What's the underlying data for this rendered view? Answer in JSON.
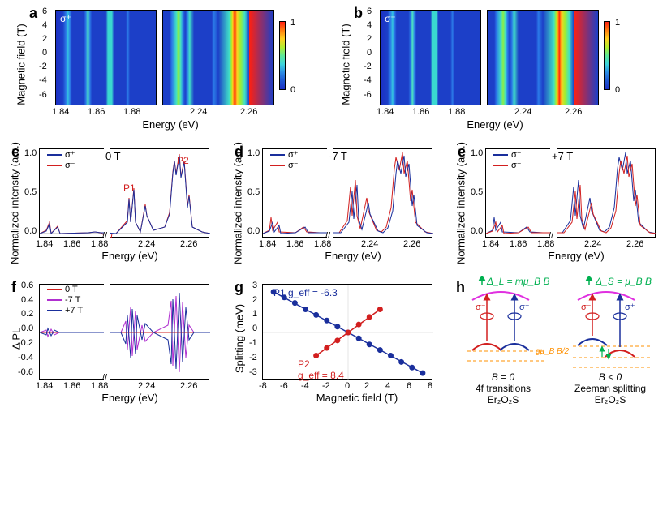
{
  "colors": {
    "sigma_plus": "#1a2f9c",
    "sigma_minus": "#d21f1f",
    "violet": "#b030d0",
    "green": "#00b050",
    "magenta": "#e030e0",
    "orange": "#ff9000",
    "axis": "#000000",
    "bg": "#ffffff"
  },
  "typography": {
    "label_fontsize": 13,
    "tick_fontsize": 11,
    "panel_label_fontsize": 18
  },
  "panels": {
    "a": {
      "label": "a",
      "sigma": "σ⁺",
      "ylabel": "Magnetic field (T)",
      "xlabel": "Energy (eV)",
      "yticks": [
        -6,
        -4,
        -2,
        0,
        2,
        4,
        6
      ],
      "xticks_left": [
        "1.84",
        "1.86",
        "1.88"
      ],
      "xticks_right": [
        "2.24",
        "2.26"
      ],
      "colorbar": {
        "min": "0",
        "max": "1"
      }
    },
    "b": {
      "label": "b",
      "sigma": "σ⁻",
      "ylabel": "Magnetic field (T)",
      "xlabel": "Energy (eV)",
      "yticks": [
        -6,
        -4,
        -2,
        0,
        2,
        4,
        6
      ],
      "xticks_left": [
        "1.84",
        "1.86",
        "1.88"
      ],
      "xticks_right": [
        "2.24",
        "2.26"
      ],
      "colorbar": {
        "min": "0",
        "max": "1"
      }
    },
    "c": {
      "label": "c",
      "field": "0 T",
      "ylabel": "Normalized intensity (a.u.)",
      "xlabel": "Energy (eV)",
      "yticks": [
        "0.0",
        "0.5",
        "1.0"
      ],
      "xticks_left": [
        "1.84",
        "1.86",
        "1.88"
      ],
      "xticks_right": [
        "2.24",
        "2.26"
      ],
      "legend": [
        "σ⁺",
        "σ⁻"
      ],
      "peaks": {
        "P1": "P1",
        "P2": "P2"
      }
    },
    "d": {
      "label": "d",
      "field": "-7 T",
      "ylabel": "Normalized intensity (a.u.)",
      "xlabel": "Energy (eV)",
      "yticks": [
        "0.0",
        "0.5",
        "1.0"
      ],
      "xticks_left": [
        "1.84",
        "1.86",
        "1.88"
      ],
      "xticks_right": [
        "2.24",
        "2.26"
      ],
      "legend": [
        "σ⁺",
        "σ⁻"
      ]
    },
    "e": {
      "label": "e",
      "field": "+7 T",
      "ylabel": "Normalized intensity (a.u.)",
      "xlabel": "Energy (eV)",
      "yticks": [
        "0.0",
        "0.5",
        "1.0"
      ],
      "xticks_left": [
        "1.84",
        "1.86",
        "1.88"
      ],
      "xticks_right": [
        "2.24",
        "2.26"
      ],
      "legend": [
        "σ⁺",
        "σ⁻"
      ]
    },
    "f": {
      "label": "f",
      "ylabel": "Δ PL",
      "xlabel": "Energy (eV)",
      "yticks": [
        "-0.6",
        "-0.4",
        "-0.2",
        "0.0",
        "0.2",
        "0.4",
        "0.6"
      ],
      "xticks_left": [
        "1.84",
        "1.86",
        "1.88"
      ],
      "xticks_right": [
        "2.24",
        "2.26"
      ],
      "legend": [
        "0 T",
        "-7 T",
        "+7 T"
      ]
    },
    "g": {
      "label": "g",
      "ylabel": "Splitting (meV)",
      "xlabel": "Magnetic field (T)",
      "yticks": [
        "-3",
        "-2",
        "-1",
        "0",
        "1",
        "2",
        "3"
      ],
      "xticks": [
        "-8",
        "-6",
        "-4",
        "-2",
        "0",
        "2",
        "4",
        "6",
        "8"
      ],
      "series": [
        {
          "name": "P1",
          "label": "P1",
          "g": "g_eff = -6.3",
          "color": "#1a2f9c",
          "points": [
            [
              -7,
              2.55
            ],
            [
              -6,
              2.2
            ],
            [
              -5,
              1.85
            ],
            [
              -4,
              1.45
            ],
            [
              -3,
              1.1
            ],
            [
              -2,
              0.75
            ],
            [
              -1,
              0.37
            ],
            [
              0,
              0.0
            ],
            [
              1,
              -0.37
            ],
            [
              2,
              -0.75
            ],
            [
              3,
              -1.1
            ],
            [
              4,
              -1.45
            ],
            [
              5,
              -1.85
            ],
            [
              6,
              -2.2
            ],
            [
              7,
              -2.55
            ]
          ]
        },
        {
          "name": "P2",
          "label": "P2",
          "g": "g_eff = 8.4",
          "color": "#d21f1f",
          "points": [
            [
              -3,
              -1.45
            ],
            [
              -2,
              -0.97
            ],
            [
              -1,
              -0.5
            ],
            [
              0,
              0.0
            ],
            [
              1,
              0.5
            ],
            [
              2,
              0.97
            ],
            [
              3,
              1.45
            ]
          ]
        }
      ]
    },
    "h": {
      "label": "h",
      "delta_L": "Δ_L = mμ_B B",
      "delta_S": "Δ_S = μ_B B",
      "g_split": "gμ_B B/2",
      "left_caption1": "B = 0",
      "left_caption2": "4f transitions",
      "left_caption3": "Er₂O₂S",
      "right_caption1": "B < 0",
      "right_caption2": "Zeeman splitting",
      "right_caption3": "Er₂O₂S"
    }
  }
}
